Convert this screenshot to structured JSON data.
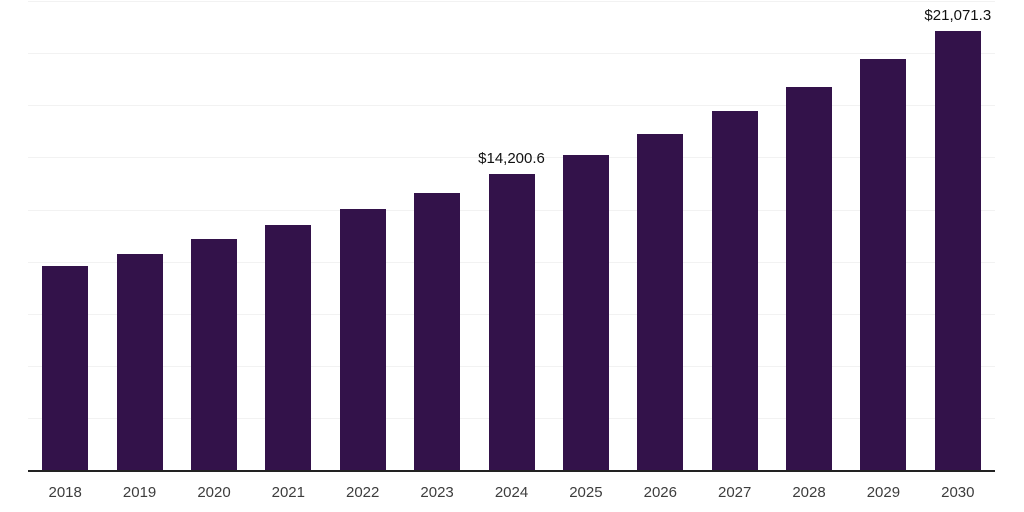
{
  "chart_data": {
    "type": "bar",
    "title": "",
    "xlabel": "",
    "ylabel": "",
    "categories": [
      "2018",
      "2019",
      "2020",
      "2021",
      "2022",
      "2023",
      "2024",
      "2025",
      "2026",
      "2027",
      "2028",
      "2029",
      "2030"
    ],
    "values": [
      9800,
      10380,
      11100,
      11740,
      12510,
      13290,
      14200.6,
      15120,
      16140,
      17250,
      18370,
      19720,
      21071.3
    ],
    "data_labels": {
      "2024": "$14,200.6",
      "2030": "$21,071.3"
    },
    "ylim": [
      0,
      22500
    ],
    "gridline_step": 2500,
    "grid": "horizontal-only",
    "legend": "none",
    "y_axis_tick_labels_visible": false,
    "colors": {
      "bar": "#33124a",
      "gridline": "#f2f2f2",
      "axis_line": "#222222",
      "tick_label": "#3d3d3d",
      "data_label": "#111111",
      "background": "#ffffff"
    }
  }
}
